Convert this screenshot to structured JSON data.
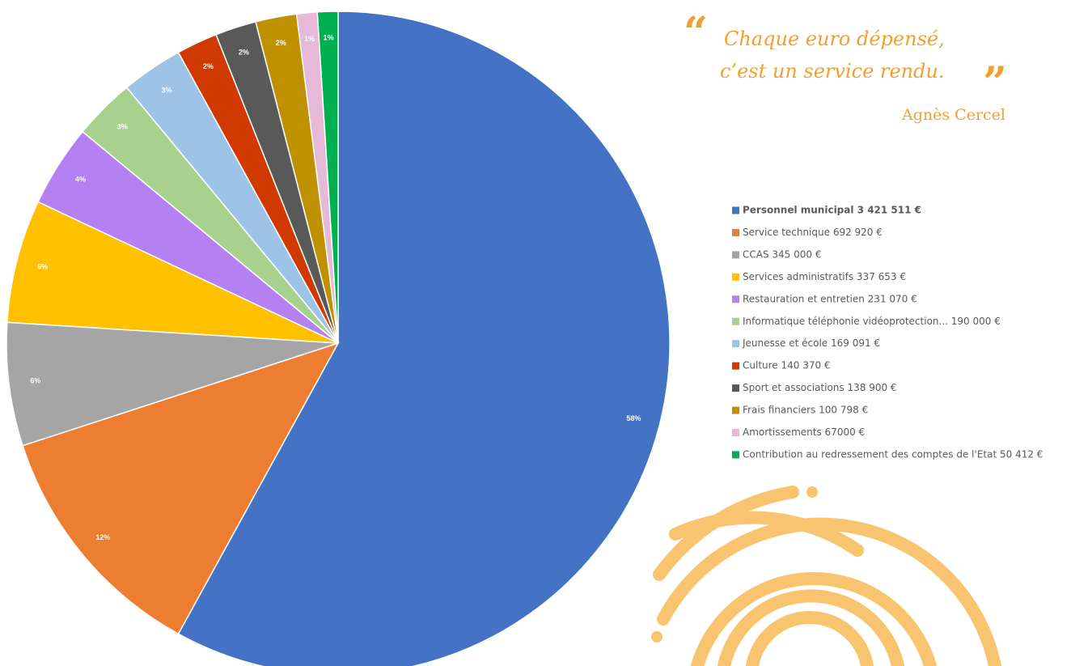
{
  "chart_data": {
    "type": "pie",
    "quote": "Chaque euro dépensé, c’est un service rendu.",
    "quote_line1": "Chaque euro dépensé,",
    "quote_line2": "c’est un service rendu.",
    "author": "Agnès Cercel",
    "categories": [
      "Personnel municipal 3 421 511 €",
      "Service technique 692 920 €",
      "CCAS 345 000 €",
      "Services administratifs 337 653 €",
      "Restauration et entretien 231 070 €",
      "Informatique téléphonie vidéoprotection... 190 000 €",
      "Jeunesse et école 169 091 €",
      "Culture 140 370 €",
      "Sport et associations 138 900 €",
      "Frais financiers 100 798 €",
      "Amortissements 67000 €",
      "Contribution au redressement des comptes de l'Etat 50 412 €"
    ],
    "values": [
      58,
      12,
      6,
      6,
      4,
      3,
      3,
      2,
      2,
      2,
      1,
      1
    ],
    "value_labels": [
      "58%",
      "12%",
      "6%",
      "6%",
      "4%",
      "3%",
      "3%",
      "2%",
      "2%",
      "2%",
      "1%",
      "1%"
    ],
    "colors": [
      "#4472c4",
      "#ed7d31",
      "#a5a5a5",
      "#ffc000",
      "#b581f2",
      "#a9d18e",
      "#9dc3e6",
      "#d03a00",
      "#595959",
      "#bf9000",
      "#e6b9d8",
      "#00b050"
    ],
    "legend": "right"
  }
}
